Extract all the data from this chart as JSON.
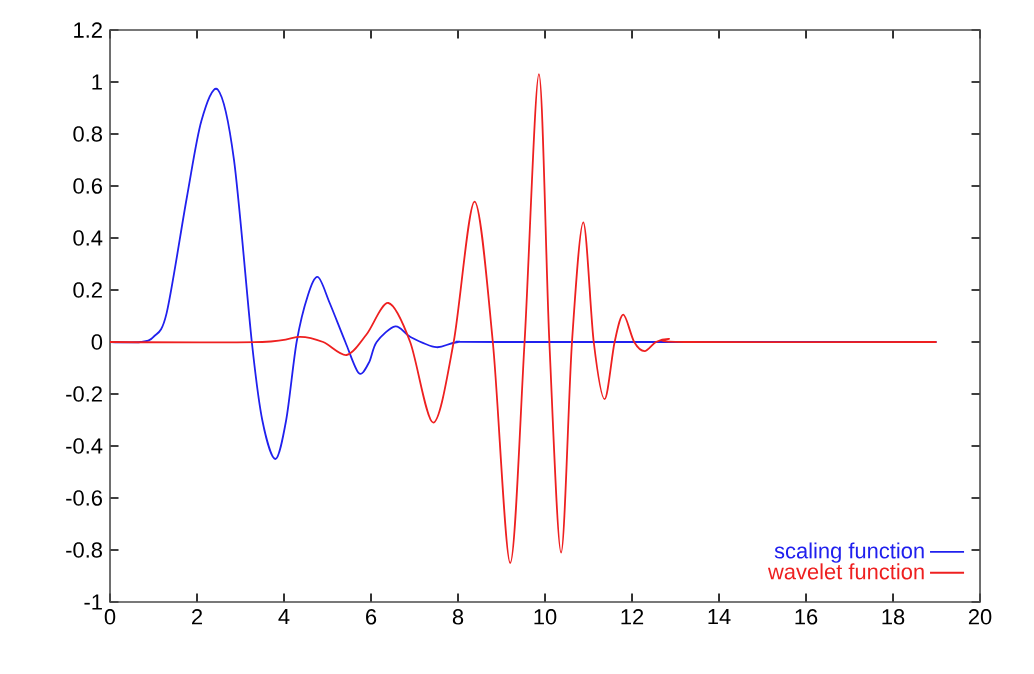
{
  "chart_data": {
    "type": "line",
    "xlim": [
      0,
      20
    ],
    "ylim": [
      -1,
      1.2
    ],
    "xticks": [
      0,
      2,
      4,
      6,
      8,
      10,
      12,
      14,
      16,
      18,
      20
    ],
    "yticks": [
      -1,
      -0.8,
      -0.6,
      -0.4,
      -0.2,
      0,
      0.2,
      0.4,
      0.6,
      0.8,
      1,
      1.2
    ],
    "legend": "bottom right",
    "grid": false,
    "marker": "none",
    "line_style": "solid",
    "series": [
      {
        "name": "scaling function",
        "color": "#2020ee",
        "x": [
          0,
          0.7,
          1.0,
          1.3,
          1.76,
          2.1,
          2.48,
          2.85,
          3.26,
          3.5,
          3.8,
          4.05,
          4.29,
          4.55,
          4.78,
          5.05,
          5.41,
          5.72,
          5.95,
          6.13,
          6.56,
          6.9,
          7.5,
          8,
          9,
          19
        ],
        "values": [
          0,
          0,
          0.02,
          0.11,
          0.55,
          0.85,
          0.97,
          0.7,
          0,
          -0.3,
          -0.45,
          -0.3,
          0,
          0.18,
          0.25,
          0.15,
          0,
          -0.12,
          -0.08,
          0,
          0.06,
          0.02,
          -0.02,
          0,
          0,
          0
        ]
      },
      {
        "name": "wavelet function",
        "color": "#ee2020",
        "x": [
          0,
          3.5,
          4.37,
          4.9,
          5.44,
          5.9,
          6.4,
          6.9,
          7.43,
          7.9,
          8.38,
          8.8,
          9.2,
          9.53,
          9.86,
          10.1,
          10.37,
          10.62,
          10.88,
          11.12,
          11.37,
          11.6,
          11.8,
          12.05,
          12.29,
          12.55,
          12.84,
          13.2,
          19
        ],
        "values": [
          0,
          0,
          0.02,
          0,
          -0.05,
          0.03,
          0.15,
          0,
          -0.31,
          0,
          0.54,
          0,
          -0.85,
          0,
          1.03,
          0,
          -0.81,
          0,
          0.46,
          0,
          -0.22,
          0,
          0.105,
          0,
          -0.035,
          0,
          0.012,
          0,
          0
        ]
      }
    ]
  }
}
